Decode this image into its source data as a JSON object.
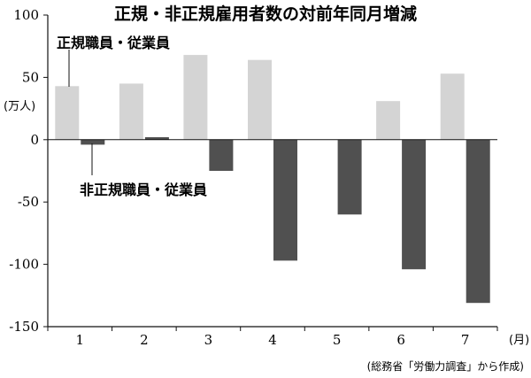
{
  "chart_data": {
    "type": "bar",
    "title": "正規・非正規雇用者数の対前年同月増減",
    "categories": [
      "1",
      "2",
      "3",
      "4",
      "5",
      "6",
      "7"
    ],
    "xlabel": "(月)",
    "ylabel": "(万人)",
    "ylim": [
      -150,
      100
    ],
    "yticks": [
      100,
      50,
      0,
      -50,
      -100,
      -150
    ],
    "ytick_labels": [
      "100",
      "50",
      "0",
      "-50",
      "-100",
      "-150"
    ],
    "grid": false,
    "series": [
      {
        "name": "正規職員・従業員",
        "color": "#d4d4d4",
        "values": [
          43,
          45,
          68,
          64,
          0,
          31,
          53
        ]
      },
      {
        "name": "非正規職員・従業員",
        "color": "#505050",
        "values": [
          -4,
          2,
          -25,
          -97,
          -60,
          -104,
          -131
        ]
      }
    ],
    "source": "(総務省「労働力調査」から作成)"
  }
}
